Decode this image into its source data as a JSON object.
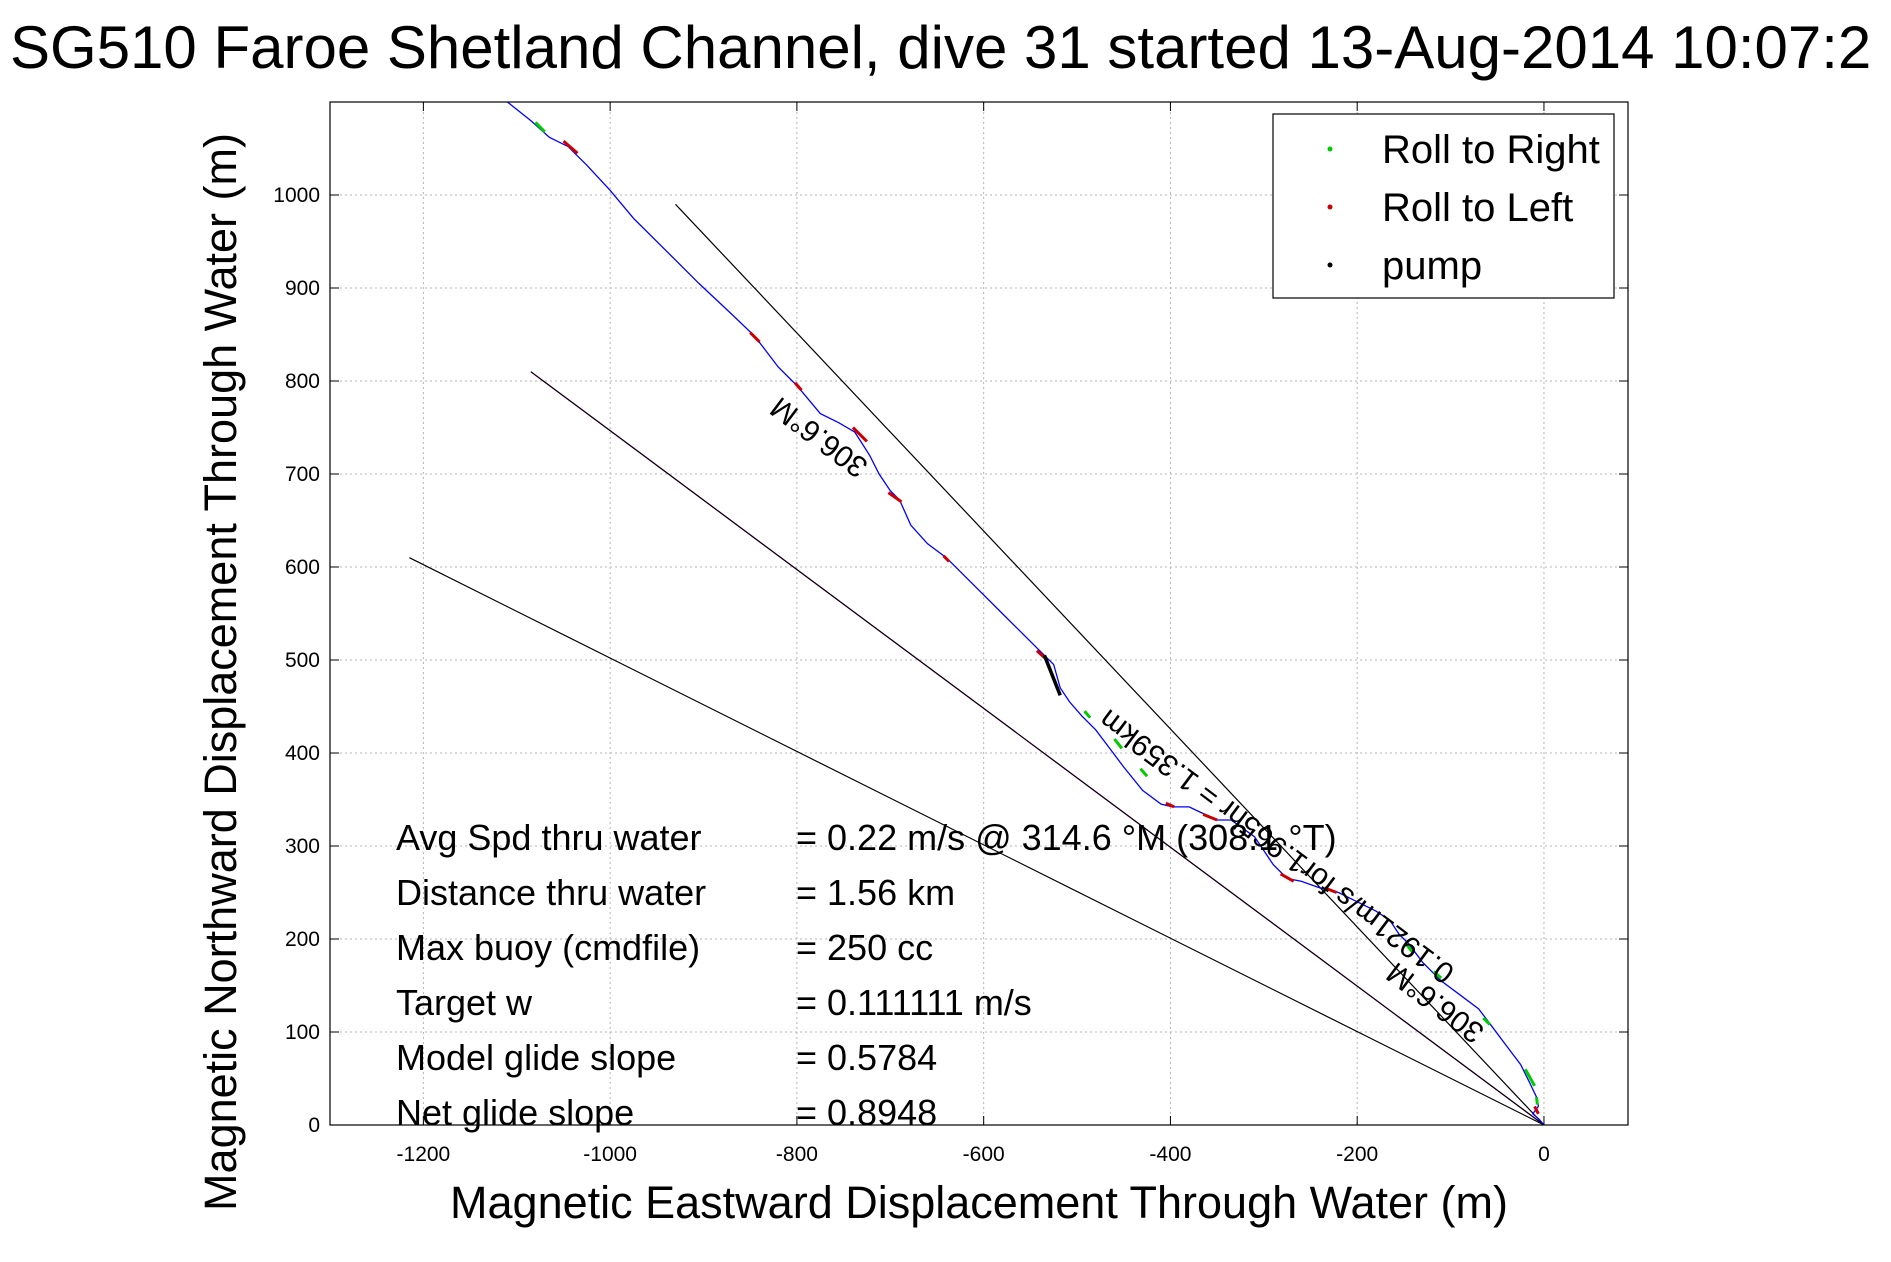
{
  "chart_data": {
    "type": "line",
    "title": "SG510 Faroe Shetland Channel, dive 31 started 13-Aug-2014 10:07:2",
    "xlabel": "Magnetic Eastward Displacement Through Water (m)",
    "ylabel": "Magnetic Northward Displacement Through Water (m)",
    "xlim": [
      -1300,
      90
    ],
    "ylim": [
      0,
      1100
    ],
    "xticks": [
      -1200,
      -1000,
      -800,
      -600,
      -400,
      -200,
      0
    ],
    "xtick_labels": [
      "-1200",
      "-1000",
      "-800",
      "-600",
      "-400",
      "-200",
      "0"
    ],
    "yticks": [
      0,
      100,
      200,
      300,
      400,
      500,
      600,
      700,
      800,
      900,
      1000
    ],
    "ytick_labels": [
      "0",
      "100",
      "200",
      "300",
      "400",
      "500",
      "600",
      "700",
      "800",
      "900",
      "1000"
    ],
    "grid": true,
    "legend_position": "top-right",
    "legend": [
      {
        "label": "Roll to Right",
        "color": "#00cc00"
      },
      {
        "label": "Roll to Left",
        "color": "#cc0000"
      },
      {
        "label": "pump",
        "color": "#000000"
      }
    ],
    "track": {
      "color": "#0000ff",
      "points": [
        [
          -1110,
          1100
        ],
        [
          -1085,
          1080
        ],
        [
          -1065,
          1062
        ],
        [
          -1045,
          1052
        ],
        [
          -1025,
          1032
        ],
        [
          -1000,
          1005
        ],
        [
          -975,
          975
        ],
        [
          -940,
          940
        ],
        [
          -905,
          905
        ],
        [
          -870,
          872
        ],
        [
          -845,
          848
        ],
        [
          -820,
          815
        ],
        [
          -800,
          795
        ],
        [
          -775,
          765
        ],
        [
          -755,
          755
        ],
        [
          -738,
          745
        ],
        [
          -722,
          720
        ],
        [
          -712,
          700
        ],
        [
          -700,
          682
        ],
        [
          -690,
          672
        ],
        [
          -678,
          645
        ],
        [
          -660,
          625
        ],
        [
          -640,
          610
        ],
        [
          -620,
          590
        ],
        [
          -600,
          570
        ],
        [
          -580,
          550
        ],
        [
          -560,
          530
        ],
        [
          -540,
          510
        ],
        [
          -525,
          495
        ],
        [
          -518,
          470
        ],
        [
          -508,
          455
        ],
        [
          -495,
          440
        ],
        [
          -480,
          425
        ],
        [
          -465,
          405
        ],
        [
          -450,
          385
        ],
        [
          -430,
          360
        ],
        [
          -410,
          345
        ],
        [
          -398,
          342
        ],
        [
          -380,
          342
        ],
        [
          -365,
          335
        ],
        [
          -350,
          328
        ],
        [
          -335,
          328
        ],
        [
          -310,
          310
        ],
        [
          -290,
          280
        ],
        [
          -275,
          265
        ],
        [
          -260,
          262
        ],
        [
          -240,
          255
        ],
        [
          -220,
          250
        ],
        [
          -200,
          240
        ],
        [
          -180,
          230
        ],
        [
          -165,
          220
        ],
        [
          -155,
          205
        ],
        [
          -145,
          195
        ],
        [
          -130,
          175
        ],
        [
          -110,
          155
        ],
        [
          -90,
          140
        ],
        [
          -70,
          125
        ],
        [
          -55,
          105
        ],
        [
          -40,
          85
        ],
        [
          -25,
          65
        ],
        [
          -15,
          45
        ],
        [
          -8,
          30
        ],
        [
          -6,
          20
        ],
        [
          -12,
          12
        ],
        [
          -5,
          6
        ],
        [
          0,
          0
        ]
      ]
    },
    "roll_right_segments": [
      [
        [
          -1080,
          1078
        ],
        [
          -1070,
          1068
        ]
      ],
      [
        [
          -492,
          445
        ],
        [
          -486,
          438
        ]
      ],
      [
        [
          -460,
          415
        ],
        [
          -452,
          405
        ]
      ],
      [
        [
          -432,
          383
        ],
        [
          -425,
          375
        ]
      ],
      [
        [
          -148,
          195
        ],
        [
          -140,
          185
        ]
      ],
      [
        [
          -118,
          165
        ],
        [
          -110,
          158
        ]
      ],
      [
        [
          -65,
          115
        ],
        [
          -58,
          108
        ]
      ],
      [
        [
          -20,
          60
        ],
        [
          -10,
          42
        ]
      ],
      [
        [
          -8,
          30
        ],
        [
          -7,
          22
        ]
      ]
    ],
    "roll_left_segments": [
      [
        [
          -1050,
          1058
        ],
        [
          -1035,
          1045
        ]
      ],
      [
        [
          -850,
          852
        ],
        [
          -840,
          842
        ]
      ],
      [
        [
          -802,
          798
        ],
        [
          -795,
          790
        ]
      ],
      [
        [
          -740,
          750
        ],
        [
          -725,
          735
        ]
      ],
      [
        [
          -702,
          680
        ],
        [
          -688,
          670
        ]
      ],
      [
        [
          -643,
          612
        ],
        [
          -637,
          606
        ]
      ],
      [
        [
          -543,
          510
        ],
        [
          -532,
          500
        ]
      ],
      [
        [
          -405,
          346
        ],
        [
          -396,
          342
        ]
      ],
      [
        [
          -365,
          334
        ],
        [
          -350,
          328
        ]
      ],
      [
        [
          -282,
          270
        ],
        [
          -268,
          262
        ]
      ],
      [
        [
          -235,
          255
        ],
        [
          -222,
          250
        ]
      ],
      [
        [
          -10,
          20
        ],
        [
          -6,
          12
        ]
      ]
    ],
    "pump_segments": [
      [
        [
          -535,
          505
        ],
        [
          -518,
          462
        ]
      ]
    ],
    "reference_lines": [
      {
        "color": "#000000",
        "points": [
          [
            0,
            0
          ],
          [
            -930,
            990
          ]
        ]
      },
      {
        "color": "#000000",
        "points": [
          [
            0,
            0
          ],
          [
            -1215,
            610
          ]
        ]
      },
      {
        "color": "#ff00ff",
        "points": [
          [
            0,
            0
          ],
          [
            -1085,
            810
          ]
        ]
      },
      {
        "color": "#000000",
        "points": [
          [
            0,
            0
          ],
          [
            -1085,
            810
          ]
        ]
      }
    ],
    "line_labels": [
      {
        "text": "306.6°M",
        "x": -770,
        "y": 748,
        "rotation": 36.9
      },
      {
        "text": "0.1921m/s for1.965hr = 1.359km",
        "x": -280,
        "y": 308,
        "rotation": 36.9
      },
      {
        "text": "306.6°M",
        "x": -110,
        "y": 140,
        "rotation": 36.9
      }
    ],
    "annotations": [
      {
        "label": "Avg Spd thru water",
        "value": "=  0.22 m/s @ 314.6 °M (308.1 °T)"
      },
      {
        "label": "Distance thru water",
        "value": "=  1.56 km"
      },
      {
        "label": "Max buoy (cmdfile)",
        "value": "= 250 cc"
      },
      {
        "label": "Target w",
        "value": "= 0.111111 m/s"
      },
      {
        "label": "Model glide slope",
        "value": "= 0.5784"
      },
      {
        "label": "Net glide slope",
        "value": "= 0.8948"
      }
    ]
  }
}
